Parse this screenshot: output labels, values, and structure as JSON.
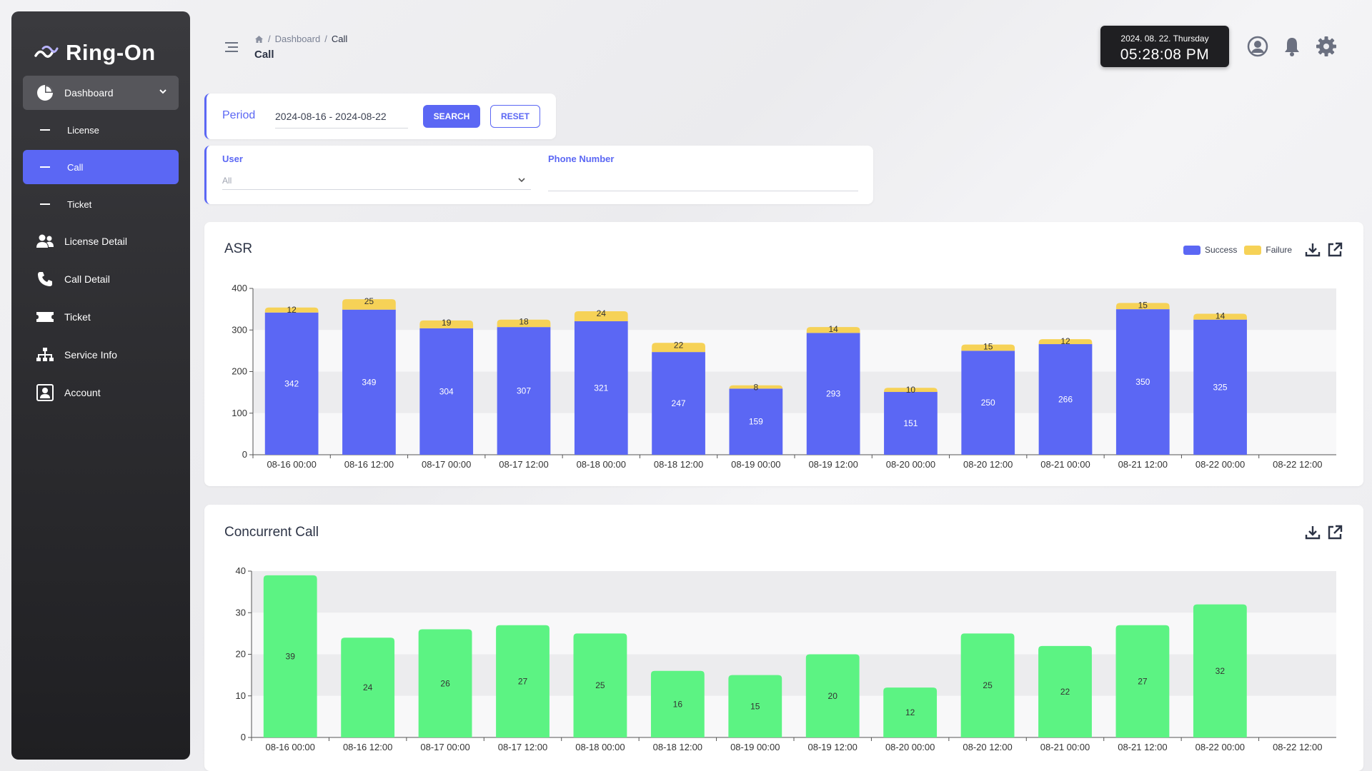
{
  "app": {
    "logo_text": "Ring-On"
  },
  "sidebar": {
    "dashboard_label": "Dashboard",
    "sub_items": [
      {
        "label": "License"
      },
      {
        "label": "Call"
      },
      {
        "label": "Ticket"
      }
    ],
    "items": [
      {
        "label": "License Detail",
        "icon": "users-icon"
      },
      {
        "label": "Call Detail",
        "icon": "phone-icon"
      },
      {
        "label": "Ticket",
        "icon": "ticket-icon"
      },
      {
        "label": "Service Info",
        "icon": "sitemap-icon"
      },
      {
        "label": "Account",
        "icon": "account-icon"
      }
    ]
  },
  "header": {
    "breadcrumb": {
      "root": "Dashboard",
      "current": "Call",
      "sep": "/"
    },
    "title": "Call",
    "clock": {
      "date": "2024. 08. 22. Thursday",
      "time": "05:28:08 PM"
    }
  },
  "filters": {
    "period_label": "Period",
    "period_value": "2024-08-16 - 2024-08-22",
    "search_label": "SEARCH",
    "reset_label": "RESET",
    "user_label": "User",
    "user_value": "All",
    "phone_label": "Phone Number",
    "phone_value": ""
  },
  "colors": {
    "accent": "#5b67f4",
    "success": "#5b67f4",
    "failure": "#f6d257",
    "concurrent": "#5cf383"
  },
  "asr": {
    "title": "ASR",
    "legend": {
      "success": "Success",
      "failure": "Failure"
    }
  },
  "concurrent": {
    "title": "Concurrent Call"
  },
  "chart_data": [
    {
      "type": "bar",
      "stacked": true,
      "title": "ASR",
      "categories": [
        "08-16 00:00",
        "08-16 12:00",
        "08-17 00:00",
        "08-17 12:00",
        "08-18 00:00",
        "08-18 12:00",
        "08-19 00:00",
        "08-19 12:00",
        "08-20 00:00",
        "08-20 12:00",
        "08-21 00:00",
        "08-21 12:00",
        "08-22 00:00",
        "08-22 12:00"
      ],
      "series": [
        {
          "name": "Success",
          "values": [
            342,
            349,
            304,
            307,
            321,
            247,
            159,
            293,
            151,
            250,
            266,
            350,
            325,
            null
          ]
        },
        {
          "name": "Failure",
          "values": [
            12,
            25,
            19,
            18,
            24,
            22,
            8,
            14,
            10,
            15,
            12,
            15,
            14,
            null
          ]
        }
      ],
      "y_ticks": [
        0,
        100,
        200,
        300,
        400
      ],
      "ylim": [
        0,
        400
      ],
      "grid": true,
      "legend_position": "top-right"
    },
    {
      "type": "bar",
      "title": "Concurrent Call",
      "categories": [
        "08-16 00:00",
        "08-16 12:00",
        "08-17 00:00",
        "08-17 12:00",
        "08-18 00:00",
        "08-18 12:00",
        "08-19 00:00",
        "08-19 12:00",
        "08-20 00:00",
        "08-20 12:00",
        "08-21 00:00",
        "08-21 12:00",
        "08-22 00:00",
        "08-22 12:00"
      ],
      "values": [
        39,
        24,
        26,
        27,
        25,
        16,
        15,
        20,
        12,
        25,
        22,
        27,
        32,
        null
      ],
      "y_ticks": [
        0,
        10,
        20,
        30,
        40
      ],
      "ylim": [
        0,
        40
      ],
      "grid": true
    }
  ]
}
